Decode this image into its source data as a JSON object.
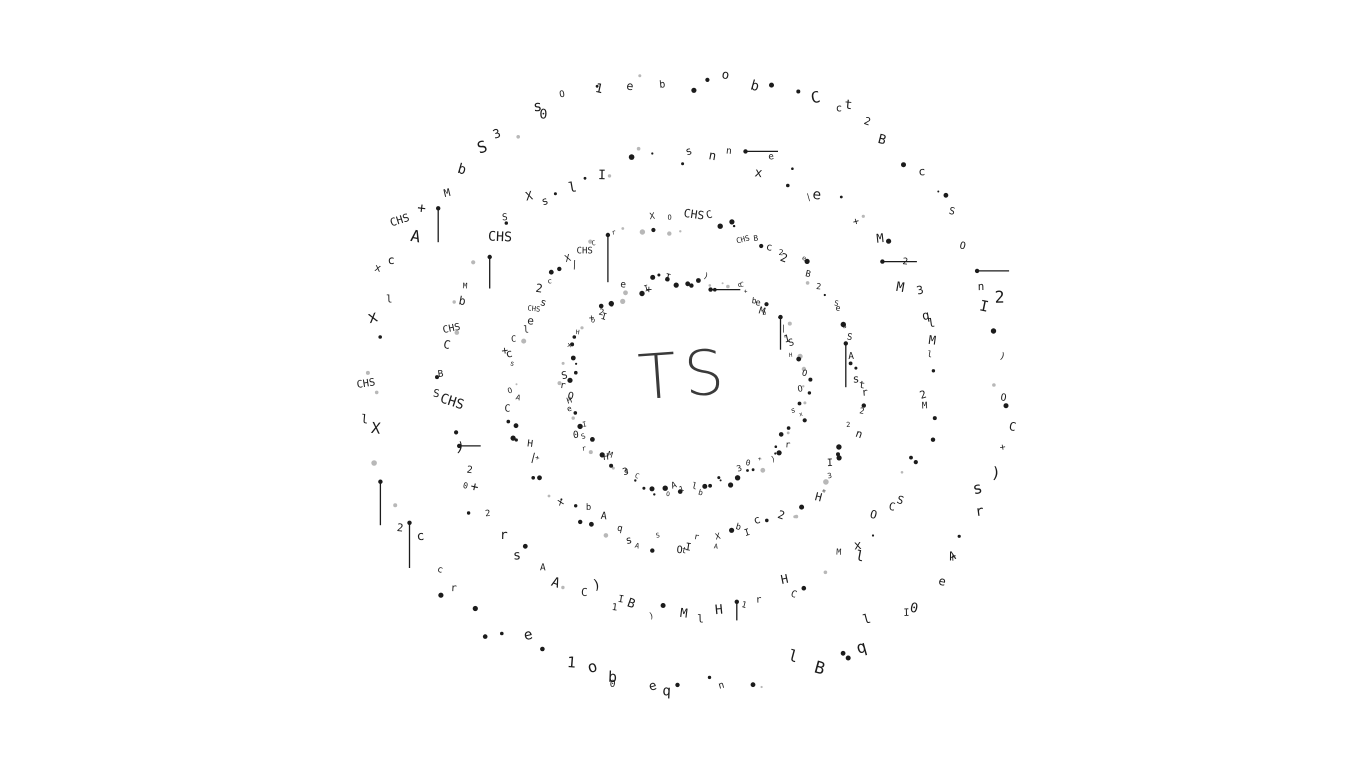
{
  "logo": {
    "text": "TS",
    "color": "#3a3a3a"
  },
  "glyph_set": [
    "C",
    "H",
    "S",
    "O",
    "X",
    "I",
    "M",
    "B",
    "A",
    "3",
    "2",
    "x",
    "o",
    "l",
    "r",
    "s",
    "c",
    "t",
    "+",
    "|",
    ")",
    "n",
    "0",
    "b",
    "CHS",
    "1",
    "e",
    "q"
  ],
  "rings": [
    {
      "name": "ring-inner",
      "count": 120,
      "dot_ratio": 0.4
    },
    {
      "name": "ring-second",
      "count": 110,
      "dot_ratio": 0.35
    },
    {
      "name": "ring-third",
      "count": 95,
      "dot_ratio": 0.35
    },
    {
      "name": "ring-outer",
      "count": 95,
      "dot_ratio": 0.3
    }
  ],
  "colors": {
    "glyph": "#1b1b1b",
    "dot_gray": "#b8b8b8",
    "background": "#ffffff"
  }
}
